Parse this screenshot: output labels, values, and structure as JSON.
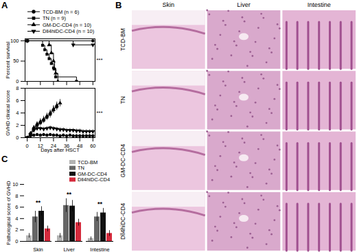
{
  "panel_labels": [
    "A",
    "B",
    "C"
  ],
  "chart_data": [
    {
      "type": "line",
      "y_label": "Percent survival",
      "line_style": "step",
      "legend": "top",
      "xlim": [
        -2,
        62
      ],
      "xticks": [
        0,
        12,
        24,
        36,
        48,
        60
      ],
      "ylim": [
        0,
        105
      ],
      "yticks": [
        0,
        50,
        100
      ],
      "tick_labels": "y",
      "annotations": [
        "***"
      ],
      "series": [
        {
          "name": "TCD-BM (n = 6)",
          "marker": "circle",
          "color": "#000000",
          "x": [
            0,
            60
          ],
          "values": [
            100,
            100
          ]
        },
        {
          "name": "TN (n = 9)",
          "marker": "square",
          "color": "#000000",
          "x": [
            0,
            14,
            16,
            18,
            20,
            22,
            24,
            26,
            45
          ],
          "values": [
            100,
            89,
            78,
            67,
            56,
            44,
            33,
            11,
            0
          ]
        },
        {
          "name": "GM-DC-CD4 (n = 10)",
          "marker": "triangle",
          "color": "#000000",
          "x": [
            0,
            20,
            22,
            24,
            25,
            26,
            28
          ],
          "values": [
            100,
            90,
            70,
            50,
            30,
            20,
            0
          ]
        },
        {
          "name": "Dll4hiDC-CD4 (n = 10)",
          "marker": "triangle-down",
          "color": "#000000",
          "x": [
            0,
            42,
            60
          ],
          "values": [
            100,
            90,
            90
          ]
        }
      ]
    },
    {
      "type": "line",
      "x_label": "Days after HSCT",
      "y_label": "GVHD clinical score",
      "xlim": [
        -2,
        62
      ],
      "xticks": [
        0,
        12,
        24,
        36,
        48,
        60
      ],
      "ylim": [
        0,
        8
      ],
      "yticks": [
        0,
        2,
        4,
        6,
        8
      ],
      "annotations": [
        "***"
      ],
      "series": [
        {
          "name": "TCD-BM (n = 6)",
          "marker": "circle",
          "color": "#000000",
          "x": [
            0,
            3,
            6,
            9,
            12,
            15,
            18,
            21,
            24,
            27,
            30,
            33,
            36,
            39,
            42,
            45,
            48,
            51,
            54,
            57,
            60
          ],
          "values": [
            0,
            0.3,
            0.4,
            0.5,
            0.4,
            0.5,
            0.4,
            0.5,
            0.4,
            0.4,
            0.3,
            0.4,
            0.3,
            0.4,
            0.3,
            0.3,
            0.3,
            0.3,
            0.3,
            0.3,
            0.3
          ],
          "errors": [
            0,
            0.2,
            0.2,
            0.2,
            0.2,
            0.2,
            0.2,
            0.2,
            0.2,
            0.2,
            0.2,
            0.2,
            0.2,
            0.2,
            0.2,
            0.2,
            0.2,
            0.2,
            0.2,
            0.2,
            0.2
          ]
        },
        {
          "name": "TN (n = 9)",
          "marker": "square",
          "color": "#000000",
          "x": [
            0,
            3,
            6,
            9,
            12,
            15,
            18,
            21,
            24,
            27
          ],
          "values": [
            0,
            0.6,
            1.5,
            2,
            2.4,
            2.8,
            3.3,
            3.8,
            4.5,
            5
          ],
          "errors": [
            0,
            0.3,
            0.4,
            0.4,
            0.5,
            0.5,
            0.5,
            0.6,
            0.6,
            0.6
          ]
        },
        {
          "name": "GM-DC-CD4 (n = 10)",
          "marker": "triangle",
          "color": "#000000",
          "x": [
            0,
            3,
            6,
            9,
            12,
            15,
            18,
            21,
            24,
            27,
            30
          ],
          "values": [
            0,
            0.7,
            1.6,
            2.2,
            2.6,
            3,
            3.5,
            4,
            4.6,
            5.2,
            5.6
          ],
          "errors": [
            0,
            0.3,
            0.4,
            0.4,
            0.5,
            0.5,
            0.5,
            0.5,
            0.6,
            0.6,
            0.6
          ]
        },
        {
          "name": "Dll4hiDC-CD4 (n = 10)",
          "marker": "triangle-down",
          "color": "#000000",
          "x": [
            0,
            3,
            6,
            9,
            12,
            15,
            18,
            21,
            24,
            27,
            30,
            33,
            36,
            39,
            42,
            45,
            48,
            51,
            54,
            57,
            60
          ],
          "values": [
            0,
            0.5,
            1.2,
            1.5,
            1.5,
            1.4,
            1.5,
            1.6,
            1.5,
            1.4,
            1.3,
            1.3,
            1.2,
            1.2,
            1.2,
            1.1,
            1.1,
            1,
            1,
            1,
            1
          ],
          "errors": [
            0,
            0.3,
            0.3,
            0.3,
            0.3,
            0.3,
            0.3,
            0.3,
            0.3,
            0.3,
            0.3,
            0.3,
            0.3,
            0.3,
            0.3,
            0.3,
            0.3,
            0.3,
            0.3,
            0.3,
            0.3
          ]
        }
      ]
    },
    {
      "type": "bar",
      "y_label": "Pathological score of GVHD",
      "legend": "top-right",
      "categories": [
        "Skin",
        "Liver",
        "Intestine"
      ],
      "ylim": [
        0,
        10
      ],
      "yticks": [
        0,
        2,
        4,
        6,
        8,
        10
      ],
      "annotations": [
        {
          "category": "Skin",
          "text": "**"
        },
        {
          "category": "Liver",
          "text": "**"
        },
        {
          "category": "Intestine",
          "text": "**"
        }
      ],
      "series": [
        {
          "name": "TCD-BM",
          "color": "#b3b3b3",
          "values": [
            1,
            1,
            0.5
          ],
          "errors": [
            0.4,
            0.4,
            0.3
          ]
        },
        {
          "name": "TN",
          "color": "#666666",
          "values": [
            4.3,
            6.3,
            4.3
          ],
          "errors": [
            1,
            1.2,
            0.8
          ]
        },
        {
          "name": "GM-DC-CD4",
          "color": "#111111",
          "values": [
            5.3,
            6.2,
            5
          ],
          "errors": [
            0.8,
            1,
            0.8
          ]
        },
        {
          "name": "Dll4hiDC-CD4",
          "color": "#d42a3c",
          "values": [
            2.2,
            3.3,
            1.4
          ],
          "errors": [
            0.5,
            0.6,
            0.5
          ]
        }
      ]
    }
  ],
  "histology": {
    "columns": [
      "Skin",
      "Liver",
      "Intestine"
    ],
    "rows": [
      "TCD-BM",
      "TN",
      "GM-DC-CD4",
      "Dll4hiDC-CD4"
    ]
  }
}
